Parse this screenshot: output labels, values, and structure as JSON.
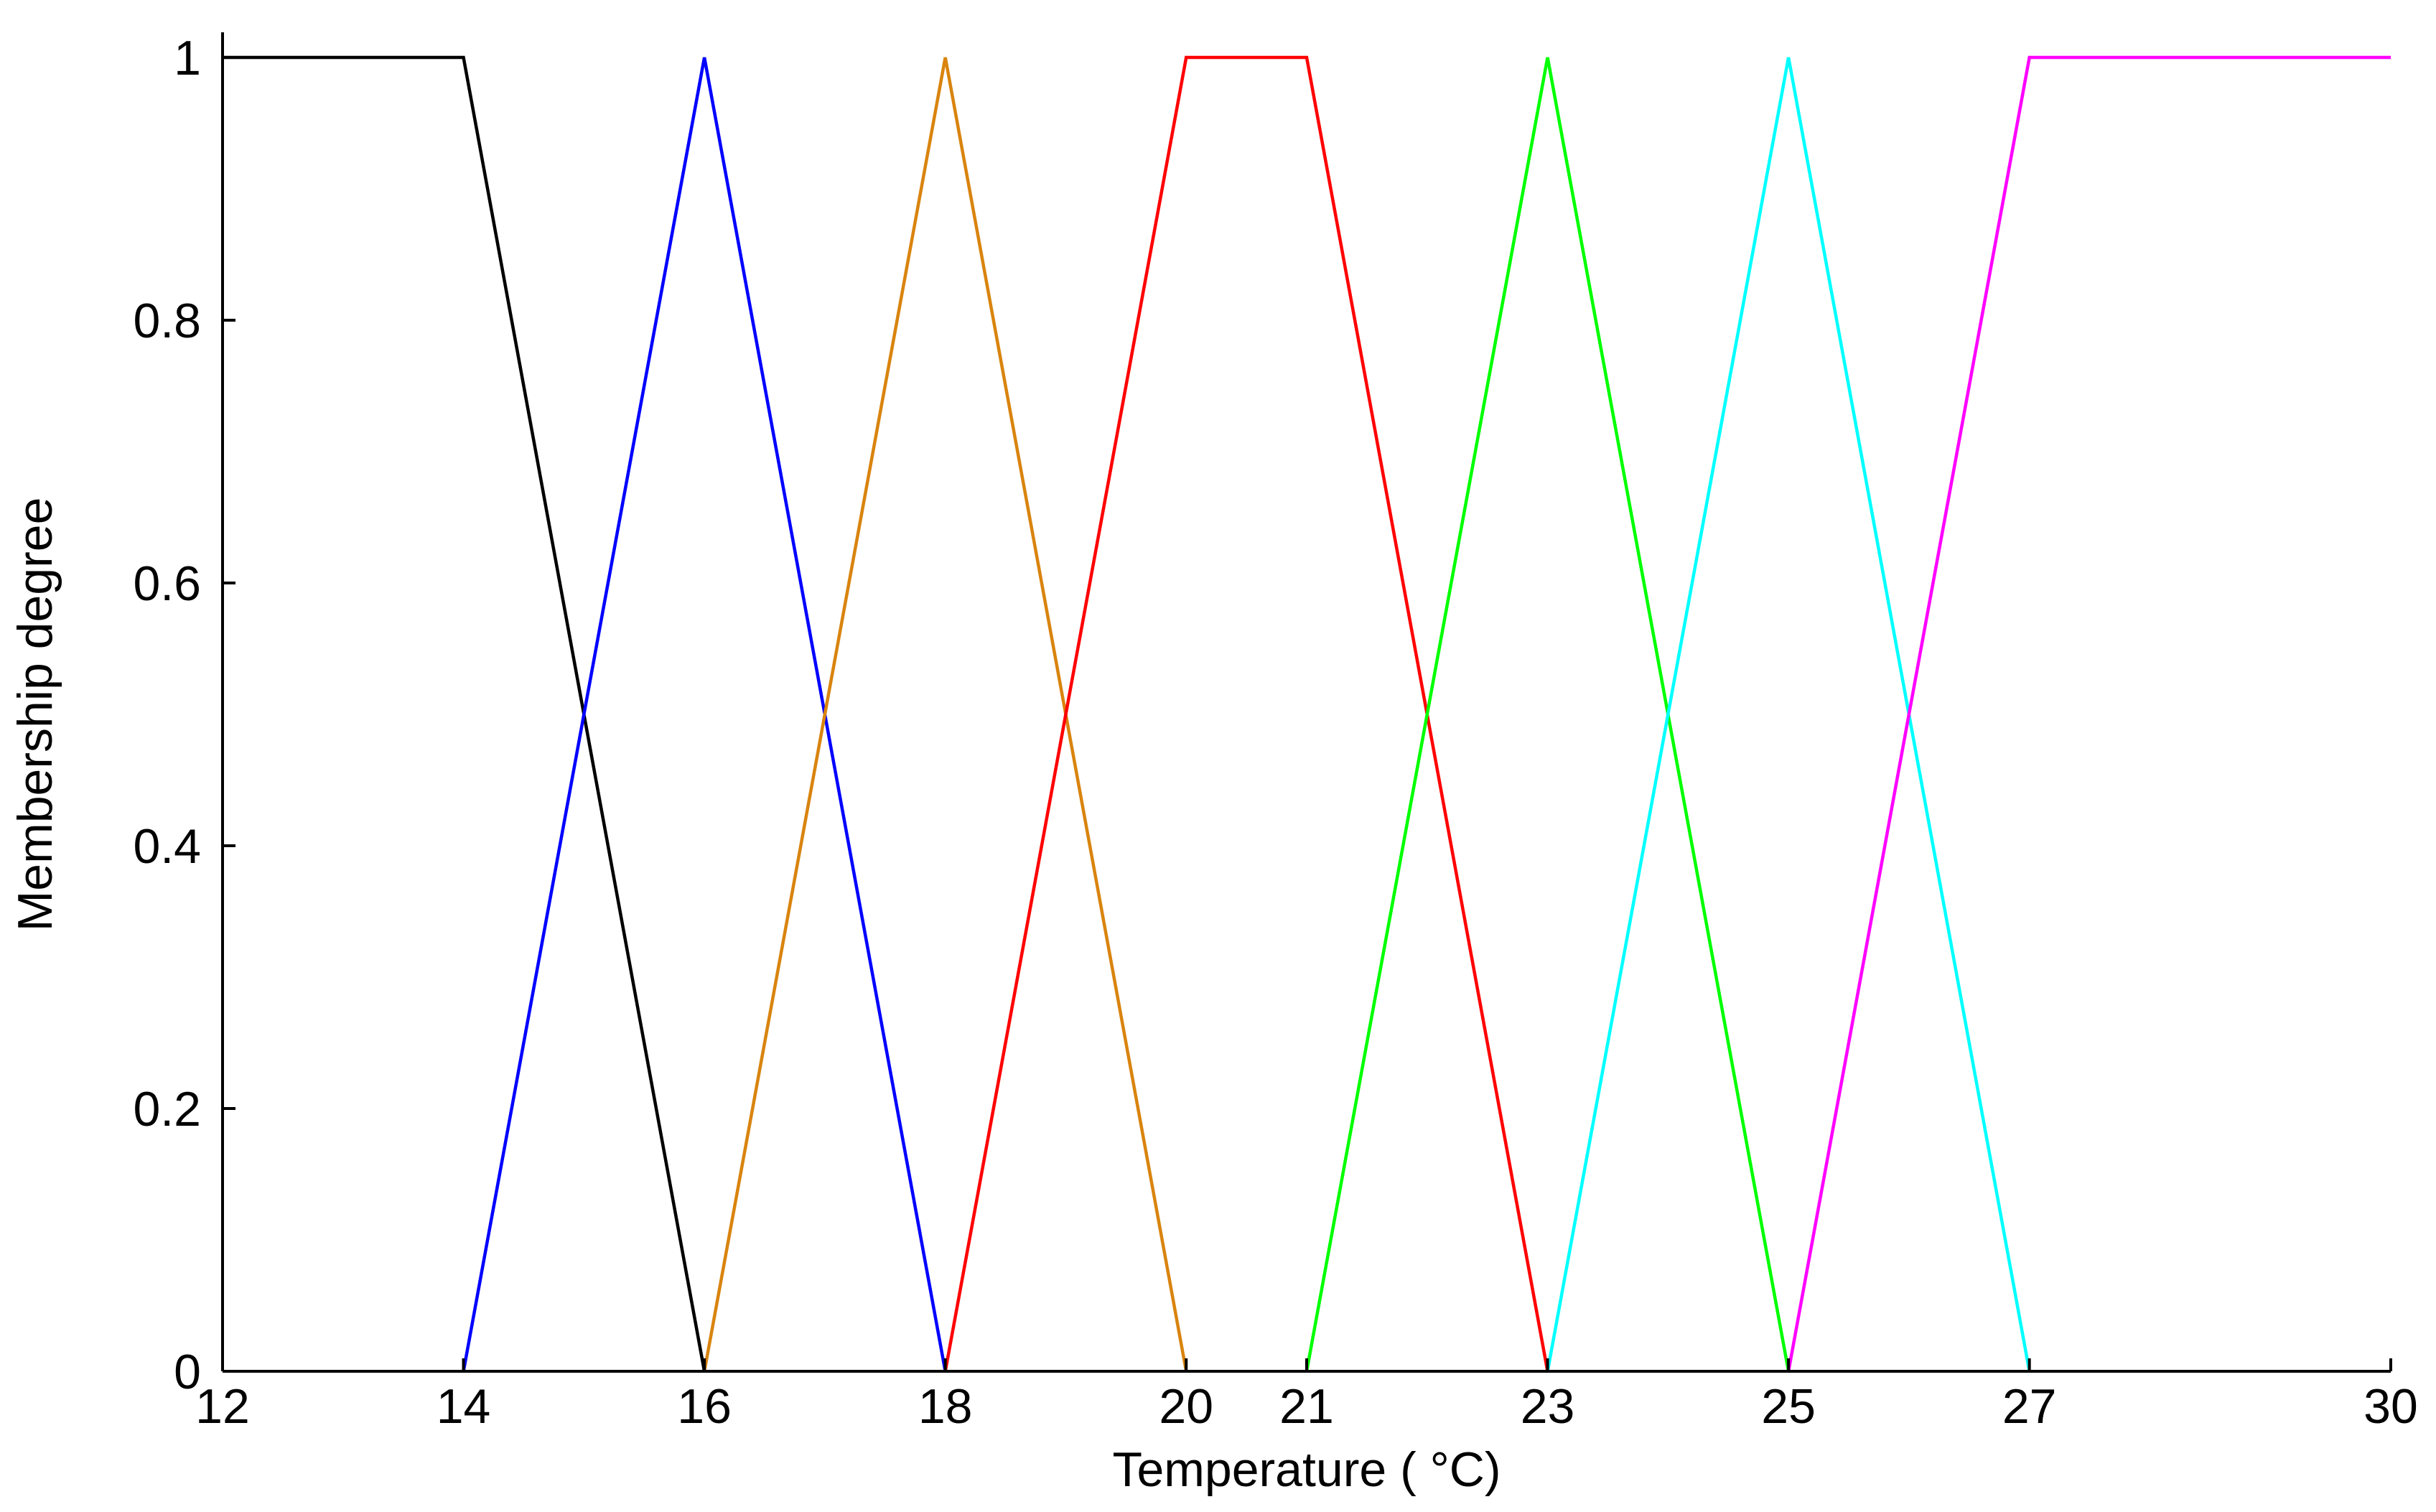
{
  "chart_data": {
    "type": "line",
    "title": "",
    "xlabel": "Temperature ( °C)",
    "ylabel": "Membership degree",
    "xlim": [
      12,
      30
    ],
    "ylim": [
      0,
      1
    ],
    "x_ticks": [
      "12",
      "14",
      "16",
      "18",
      "20",
      "21",
      "23",
      "25",
      "27",
      "30"
    ],
    "y_ticks": [
      "0",
      "0.2",
      "0.4",
      "0.6",
      "0.8",
      "1"
    ],
    "x_tick_values": [
      12,
      14,
      16,
      18,
      20,
      21,
      23,
      25,
      27,
      30
    ],
    "y_tick_values": [
      0,
      0.2,
      0.4,
      0.6,
      0.8,
      1
    ],
    "grid": false,
    "legend": "none",
    "series": [
      {
        "color": "#000000",
        "x": [
          12,
          14,
          16
        ],
        "y": [
          1,
          1,
          0
        ]
      },
      {
        "color": "#0000ff",
        "x": [
          14,
          16,
          18
        ],
        "y": [
          0,
          1,
          0
        ]
      },
      {
        "color": "#d9840f",
        "x": [
          16,
          18,
          20
        ],
        "y": [
          0,
          1,
          0
        ]
      },
      {
        "color": "#ff0000",
        "x": [
          18,
          20,
          21,
          23
        ],
        "y": [
          0,
          1,
          1,
          0
        ]
      },
      {
        "color": "#00ff00",
        "x": [
          21,
          23,
          25
        ],
        "y": [
          0,
          1,
          0
        ]
      },
      {
        "color": "#00ffff",
        "x": [
          23,
          25,
          27
        ],
        "y": [
          0,
          1,
          0
        ]
      },
      {
        "color": "#ff00ff",
        "x": [
          25,
          27,
          30
        ],
        "y": [
          0,
          1,
          1
        ]
      }
    ]
  }
}
